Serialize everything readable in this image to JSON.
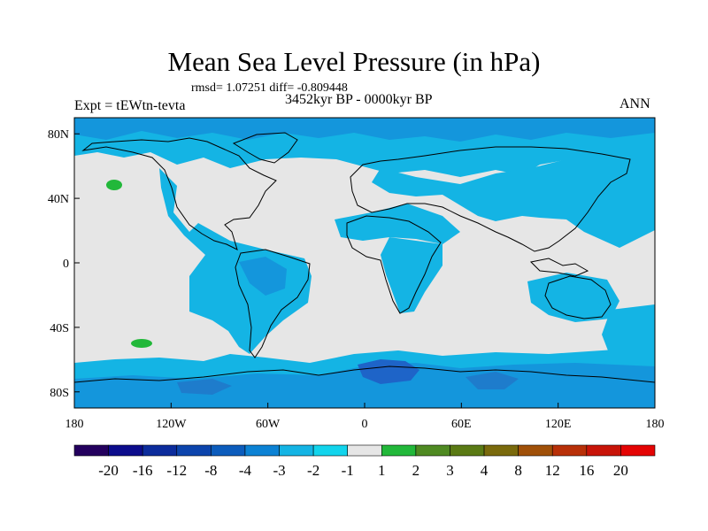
{
  "title": "Mean Sea Level Pressure (in hPa)",
  "stats": "rmsd= 1.07251 diff= -0.809448",
  "experiment": "Expt = tEWtn-tevta",
  "period": "3452kyr BP - 0000kyr BP",
  "season": "ANN",
  "map": {
    "projection": "cylindrical-equidistant",
    "lon_range": [
      -180,
      180
    ],
    "lat_range": [
      -90,
      90
    ],
    "lon_ticks": [
      {
        "value": -180,
        "label": "180"
      },
      {
        "value": -120,
        "label": "120W"
      },
      {
        "value": -60,
        "label": "60W"
      },
      {
        "value": 0,
        "label": "0"
      },
      {
        "value": 60,
        "label": "60E"
      },
      {
        "value": 120,
        "label": "120E"
      },
      {
        "value": 180,
        "label": "180"
      }
    ],
    "lat_ticks": [
      {
        "value": 80,
        "label": "80N"
      },
      {
        "value": 40,
        "label": "40N"
      },
      {
        "value": 0,
        "label": "0"
      },
      {
        "value": -40,
        "label": "40S"
      },
      {
        "value": -80,
        "label": "80S"
      }
    ]
  },
  "colorbar": {
    "colors": [
      "#24005e",
      "#0c0c8c",
      "#0c2c9c",
      "#0c44ac",
      "#0c5cbc",
      "#0c82d4",
      "#14b4e4",
      "#12d4ec",
      "#e6e6e6",
      "#22b83a",
      "#4f8a22",
      "#5a7a14",
      "#7a6a0c",
      "#a05008",
      "#b83008",
      "#c81408",
      "#e40404"
    ],
    "labels": [
      "-20",
      "-16",
      "-12",
      "-8",
      "-4",
      "-3",
      "-2",
      "-1",
      "1",
      "2",
      "3",
      "4",
      "8",
      "12",
      "16",
      "20"
    ]
  },
  "colors": {
    "background_field": "#e6e6e6",
    "minus1_to_minus2": "#14b4e4",
    "minus2_to_minus3": "#1496dc",
    "strong_negative": "#1e64c8",
    "positive_1_to_2": "#22b83a"
  }
}
